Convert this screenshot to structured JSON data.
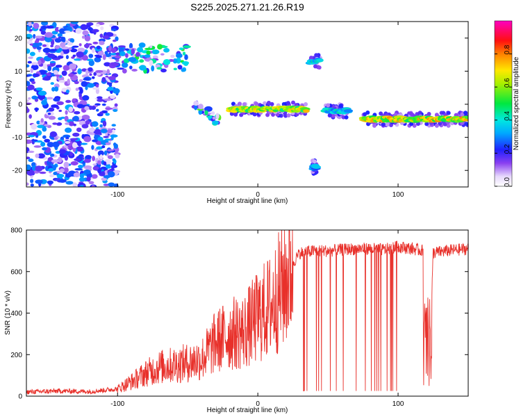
{
  "figure_title": "S225.2025.271.21.26.R19",
  "colors": {
    "snr_line": "#e8302a",
    "high_amp": "#ff2020",
    "mid_amp": "#00e0e0",
    "low_amp": "#5a00e8",
    "faint_amp": "#c8b0f8"
  },
  "chart_data": [
    {
      "type": "heatmap",
      "title": "",
      "xlabel": "Height of straight line (km)",
      "ylabel": "Frequency (Hz)",
      "xlim": [
        -165,
        150
      ],
      "ylim": [
        -25,
        25
      ],
      "xticks": [
        -100,
        0,
        100
      ],
      "xtick_labels": [
        "-100",
        "0",
        "100"
      ],
      "yticks": [
        20,
        10,
        0,
        -10,
        -20
      ],
      "ytick_labels": [
        "20",
        "10",
        "0",
        "-10",
        "-20"
      ],
      "colorbar": {
        "label": "Normalized spectral amplitude",
        "range": [
          0,
          1
        ],
        "ticks": [
          0.0,
          0.2,
          0.4,
          0.6,
          0.8
        ],
        "tick_labels": [
          "0.0",
          "0.2",
          "0.4",
          "0.6",
          "0.8"
        ],
        "colormap": "rainbow (white/lavender to purple, blue, cyan, green, yellow, red, magenta)"
      },
      "features": [
        {
          "name": "noise scatter",
          "x_range": [
            -165,
            -100
          ],
          "freq_range": [
            -25,
            25
          ],
          "amplitude": 0.2
        },
        {
          "name": "upper band",
          "x_range": [
            -100,
            -50
          ],
          "freq_range": [
            10,
            18
          ],
          "amplitude": 0.35
        },
        {
          "name": "descending track",
          "x_range": [
            -45,
            -25
          ],
          "freq_range": [
            -6,
            0
          ],
          "amplitude": 0.4
        },
        {
          "name": "main track",
          "x_range": [
            -20,
            35
          ],
          "freq": -1.5,
          "amplitude": 0.75
        },
        {
          "name": "burst high",
          "x_range": [
            37,
            45
          ],
          "freq": 13,
          "amplitude": 0.45
        },
        {
          "name": "burst low",
          "x_range": [
            39,
            42
          ],
          "freq": -19,
          "amplitude": 0.4
        },
        {
          "name": "track 2",
          "x_range": [
            48,
            65
          ],
          "freq": -2,
          "amplitude": 0.45
        },
        {
          "name": "track 3",
          "x_range": [
            75,
            150
          ],
          "freq": -4.5,
          "amplitude": 0.8
        }
      ]
    },
    {
      "type": "line",
      "title": "",
      "xlabel": "Height of straight line (km)",
      "ylabel": "SNR (10 * v/v)",
      "xlim": [
        -165,
        150
      ],
      "ylim": [
        0,
        800
      ],
      "xticks": [
        -100,
        0,
        100
      ],
      "xtick_labels": [
        "-100",
        "0",
        "100"
      ],
      "yticks": [
        0,
        200,
        400,
        600,
        800
      ],
      "ytick_labels": [
        "0",
        "200",
        "400",
        "600",
        "800"
      ],
      "series": [
        {
          "name": "SNR",
          "x": [
            -165,
            -140,
            -120,
            -100,
            -90,
            -80,
            -70,
            -60,
            -50,
            -40,
            -30,
            -20,
            -10,
            0,
            10,
            20,
            25,
            30,
            40,
            50,
            60,
            70,
            80,
            90,
            100,
            110,
            118,
            120,
            122,
            125,
            135,
            150
          ],
          "values": [
            20,
            25,
            22,
            35,
            70,
            110,
            140,
            150,
            160,
            180,
            260,
            300,
            310,
            380,
            440,
            560,
            640,
            690,
            700,
            700,
            705,
            710,
            710,
            705,
            720,
            710,
            700,
            30,
            30,
            690,
            700,
            710
          ]
        }
      ]
    }
  ]
}
